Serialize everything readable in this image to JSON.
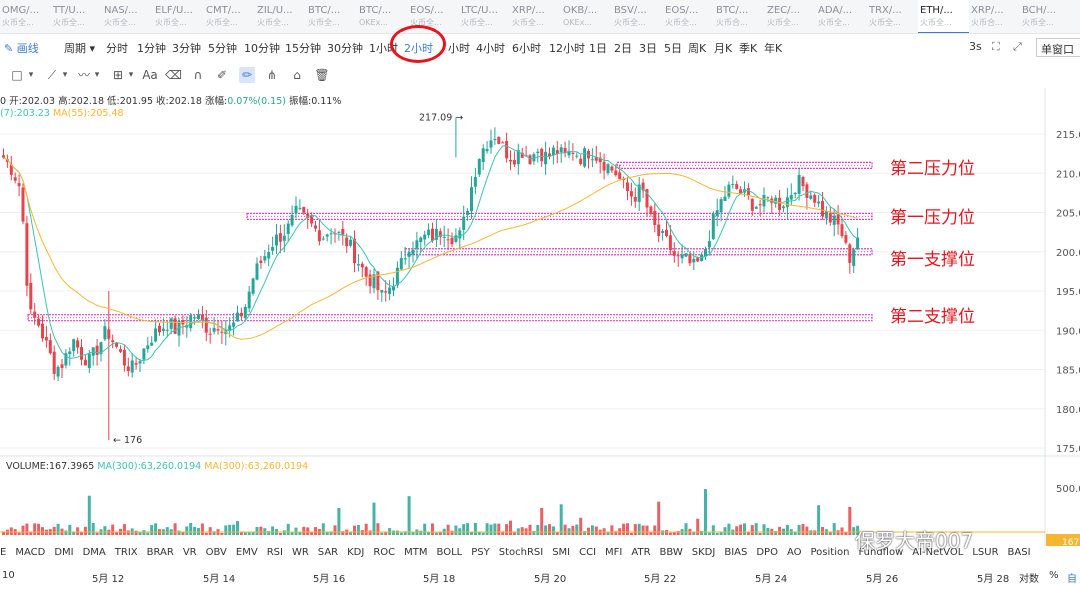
{
  "tickers": [
    {
      "symbol": "OMG/...",
      "exchange": "火币全..."
    },
    {
      "symbol": "TT/U...",
      "exchange": "火币全..."
    },
    {
      "symbol": "NAS/...",
      "exchange": "火币全..."
    },
    {
      "symbol": "ELF/U...",
      "exchange": "火币全..."
    },
    {
      "symbol": "CMT/...",
      "exchange": "火币全..."
    },
    {
      "symbol": "ZIL/U...",
      "exchange": "火币全..."
    },
    {
      "symbol": "BTC/...",
      "exchange": "火币全..."
    },
    {
      "symbol": "BTC/...",
      "exchange": "OKEx..."
    },
    {
      "symbol": "EOS/...",
      "exchange": "火币全..."
    },
    {
      "symbol": "LTC/U...",
      "exchange": "火币全..."
    },
    {
      "symbol": "XRP/...",
      "exchange": "火币全..."
    },
    {
      "symbol": "OKB/...",
      "exchange": "OKEx..."
    },
    {
      "symbol": "BSV/...",
      "exchange": "火币全..."
    },
    {
      "symbol": "EOS/...",
      "exchange": "火币全..."
    },
    {
      "symbol": "BTC/...",
      "exchange": "火币合..."
    },
    {
      "symbol": "ZEC/...",
      "exchange": "火币全..."
    },
    {
      "symbol": "ADA/...",
      "exchange": "火币全..."
    },
    {
      "symbol": "TRX/...",
      "exchange": "火币全..."
    },
    {
      "symbol": "ETH/...",
      "exchange": "火币全...",
      "active": true
    },
    {
      "symbol": "XRP/...",
      "exchange": "火币合..."
    },
    {
      "symbol": "BCH/...",
      "exchange": "火币全..."
    }
  ],
  "toolbar": {
    "draw_line": "画线",
    "period_label": "周期",
    "periods": [
      "分时",
      "1分钟",
      "3分钟",
      "5分钟",
      "10分钟",
      "15分钟",
      "30分钟",
      "1小时",
      "2小时",
      "小时",
      "4小时",
      "6小时",
      "12小时",
      "1日",
      "2日",
      "3日",
      "5日",
      "周K",
      "月K",
      "季K",
      "年K"
    ],
    "active_period_index": 8,
    "refresh_label": "3s",
    "window_mode": "单窗口"
  },
  "icons": {
    "draw_tools": [
      "square-icon",
      "trend-line-icon",
      "wave-icon",
      "crosshair-icon",
      "text-icon",
      "eraser-icon",
      "magnet-icon",
      "ruler-icon",
      "brush-icon",
      "measure-icon",
      "lock-icon",
      "trash-icon"
    ],
    "top_right": [
      "screenshot-icon",
      "fullscreen-icon"
    ]
  },
  "legend": {
    "ohlc_prefix": "0",
    "open_label": "开:",
    "open": "202.03",
    "high_label": "高:",
    "high": "202.18",
    "low_label": "低:",
    "low": "201.95",
    "close_label": "收:",
    "close": "202.18",
    "change_label": "涨幅:",
    "change": "0.07%(0.15)",
    "amplitude_label": "振幅:",
    "amplitude": "0.11%",
    "ma_short": "(7):203.23",
    "ma_long": "MA(55):205.48",
    "volume": "VOLUME:167.3965",
    "vol_ma1": "MA(300):63,260.0194",
    "vol_ma2": "MA(300):63,260.0194"
  },
  "colors": {
    "up": "#26a69a",
    "down": "#e8434c",
    "ma_short": "#3dc3b0",
    "ma_long": "#f5b731",
    "level_band": "#e040c8",
    "annotation": "#e8131c",
    "accent": "#3a7bd5"
  },
  "chart_data": {
    "type": "candlestick",
    "y_ticks": [
      "215.0",
      "210.0",
      "205.0",
      "200.0",
      "195.0",
      "190.0",
      "185.0",
      "180.0",
      "175.0"
    ],
    "y_tick_values": [
      215,
      210,
      205,
      200,
      195,
      190,
      185,
      180,
      175
    ],
    "ylim": [
      173.5,
      219.5
    ],
    "volume_ticks": [
      "500.0"
    ],
    "volume_tick_values": [
      500
    ],
    "high_marker": "217.09",
    "low_marker": "176",
    "high_value": 217.09,
    "low_value": 176,
    "levels": [
      {
        "label": "第二压力位",
        "value": 211.0
      },
      {
        "label": "第一压力位",
        "value": 204.5
      },
      {
        "label": "第一支撑位",
        "value": 200.0
      },
      {
        "label": "第二支撑位",
        "value": 191.6
      }
    ],
    "x_labels": [
      "10",
      "5月 12",
      "5月 14",
      "5月 16",
      "5月 18",
      "5月 20",
      "5月 22",
      "5月 24",
      "5月 26",
      "5月 28"
    ],
    "close_path": [
      212,
      210.5,
      208,
      192,
      191,
      188,
      185,
      186,
      189,
      187,
      186,
      188,
      190,
      188,
      186,
      185,
      187,
      189,
      190,
      191,
      190,
      191,
      192,
      191,
      190,
      191,
      190,
      191,
      193,
      197,
      199,
      201,
      202,
      203,
      205,
      204,
      203,
      202,
      203,
      202,
      201,
      199,
      197,
      196,
      194,
      196,
      198,
      201,
      201,
      202,
      202,
      203,
      202,
      202,
      207,
      212,
      214,
      215,
      213,
      212,
      213,
      212,
      213,
      212,
      213,
      212,
      213,
      212,
      213,
      212,
      211,
      210,
      208,
      207,
      208,
      204,
      202,
      201,
      199,
      199,
      198,
      199,
      203,
      206,
      208,
      208,
      207,
      206,
      206,
      207,
      206,
      207,
      209,
      208,
      207,
      205,
      204,
      203,
      199,
      202
    ]
  },
  "indicators": [
    "E",
    "MACD",
    "DMI",
    "DMA",
    "TRIX",
    "BRAR",
    "VR",
    "OBV",
    "EMV",
    "RSI",
    "WR",
    "SAR",
    "KDJ",
    "ROC",
    "MTM",
    "BOLL",
    "PSY",
    "StochRSI",
    "SMI",
    "CCI",
    "MFI",
    "ATR",
    "BBW",
    "SKDJ",
    "BIAS",
    "DPO",
    "AO",
    "Position",
    "Fundflow",
    "AI-NetVOL",
    "LSUR",
    "BASIS"
  ],
  "bottom_right": {
    "log_label": "对数",
    "pct_label": "%",
    "auto_label": "自"
  },
  "watermark": "保罗大帝007",
  "last_price_tag": "167"
}
